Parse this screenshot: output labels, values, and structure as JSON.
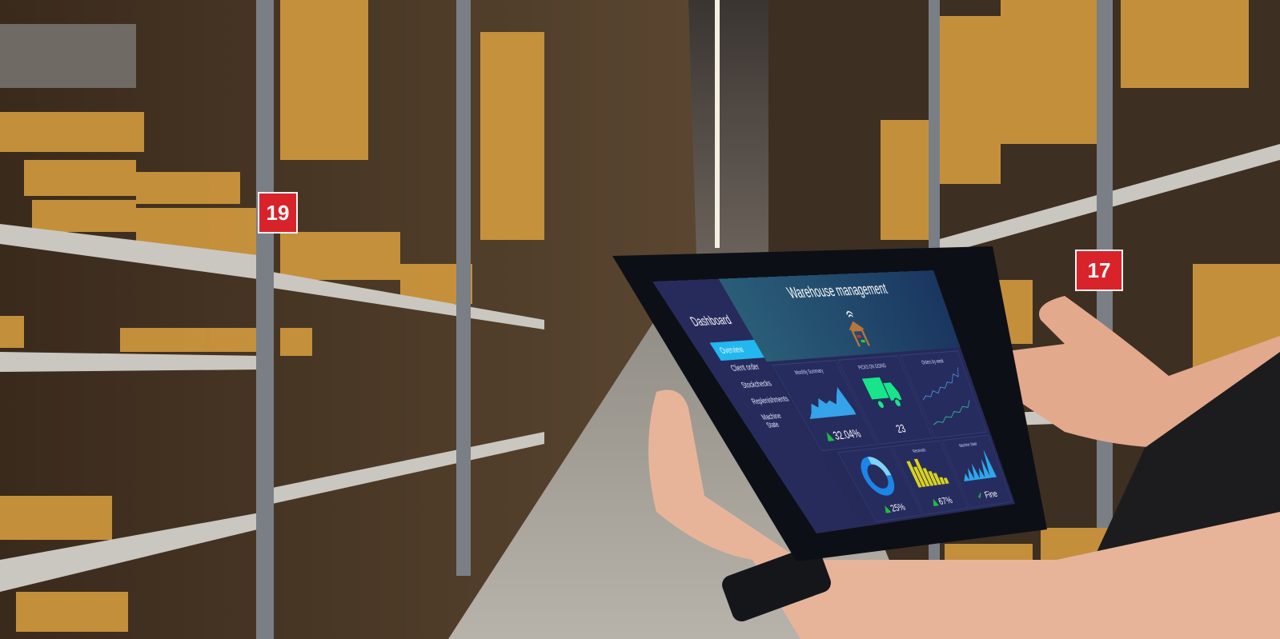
{
  "aisle_signs": [
    "19",
    "17"
  ],
  "tablet": {
    "title": "Warehouse management",
    "sidebar": {
      "heading": "Dashboard",
      "items": [
        {
          "label": "Overview",
          "active": true
        },
        {
          "label": "Client order",
          "active": false
        },
        {
          "label": "Stockchecks",
          "active": false
        },
        {
          "label": "Replenishments",
          "active": false
        },
        {
          "label": "Machine State",
          "active": false
        }
      ]
    },
    "tiles": {
      "monthly_summary": {
        "label": "Monthly Summary",
        "value": "32.04%"
      },
      "picks": {
        "label": "PICKS ON GOING",
        "value": "23"
      },
      "orders": {
        "label": "Orders by week"
      },
      "donut": {
        "value": "25%",
        "fraction": 0.25
      },
      "receivals": {
        "label": "Receivals",
        "value": "67%"
      },
      "machine_state": {
        "label": "Machine State",
        "value": "Fine"
      }
    },
    "colors": {
      "accent": "#22b7ee",
      "panel": "#272b5c",
      "up": "#1fbf3f",
      "truck": "#17e58a",
      "bars": "#d8d21c"
    }
  }
}
